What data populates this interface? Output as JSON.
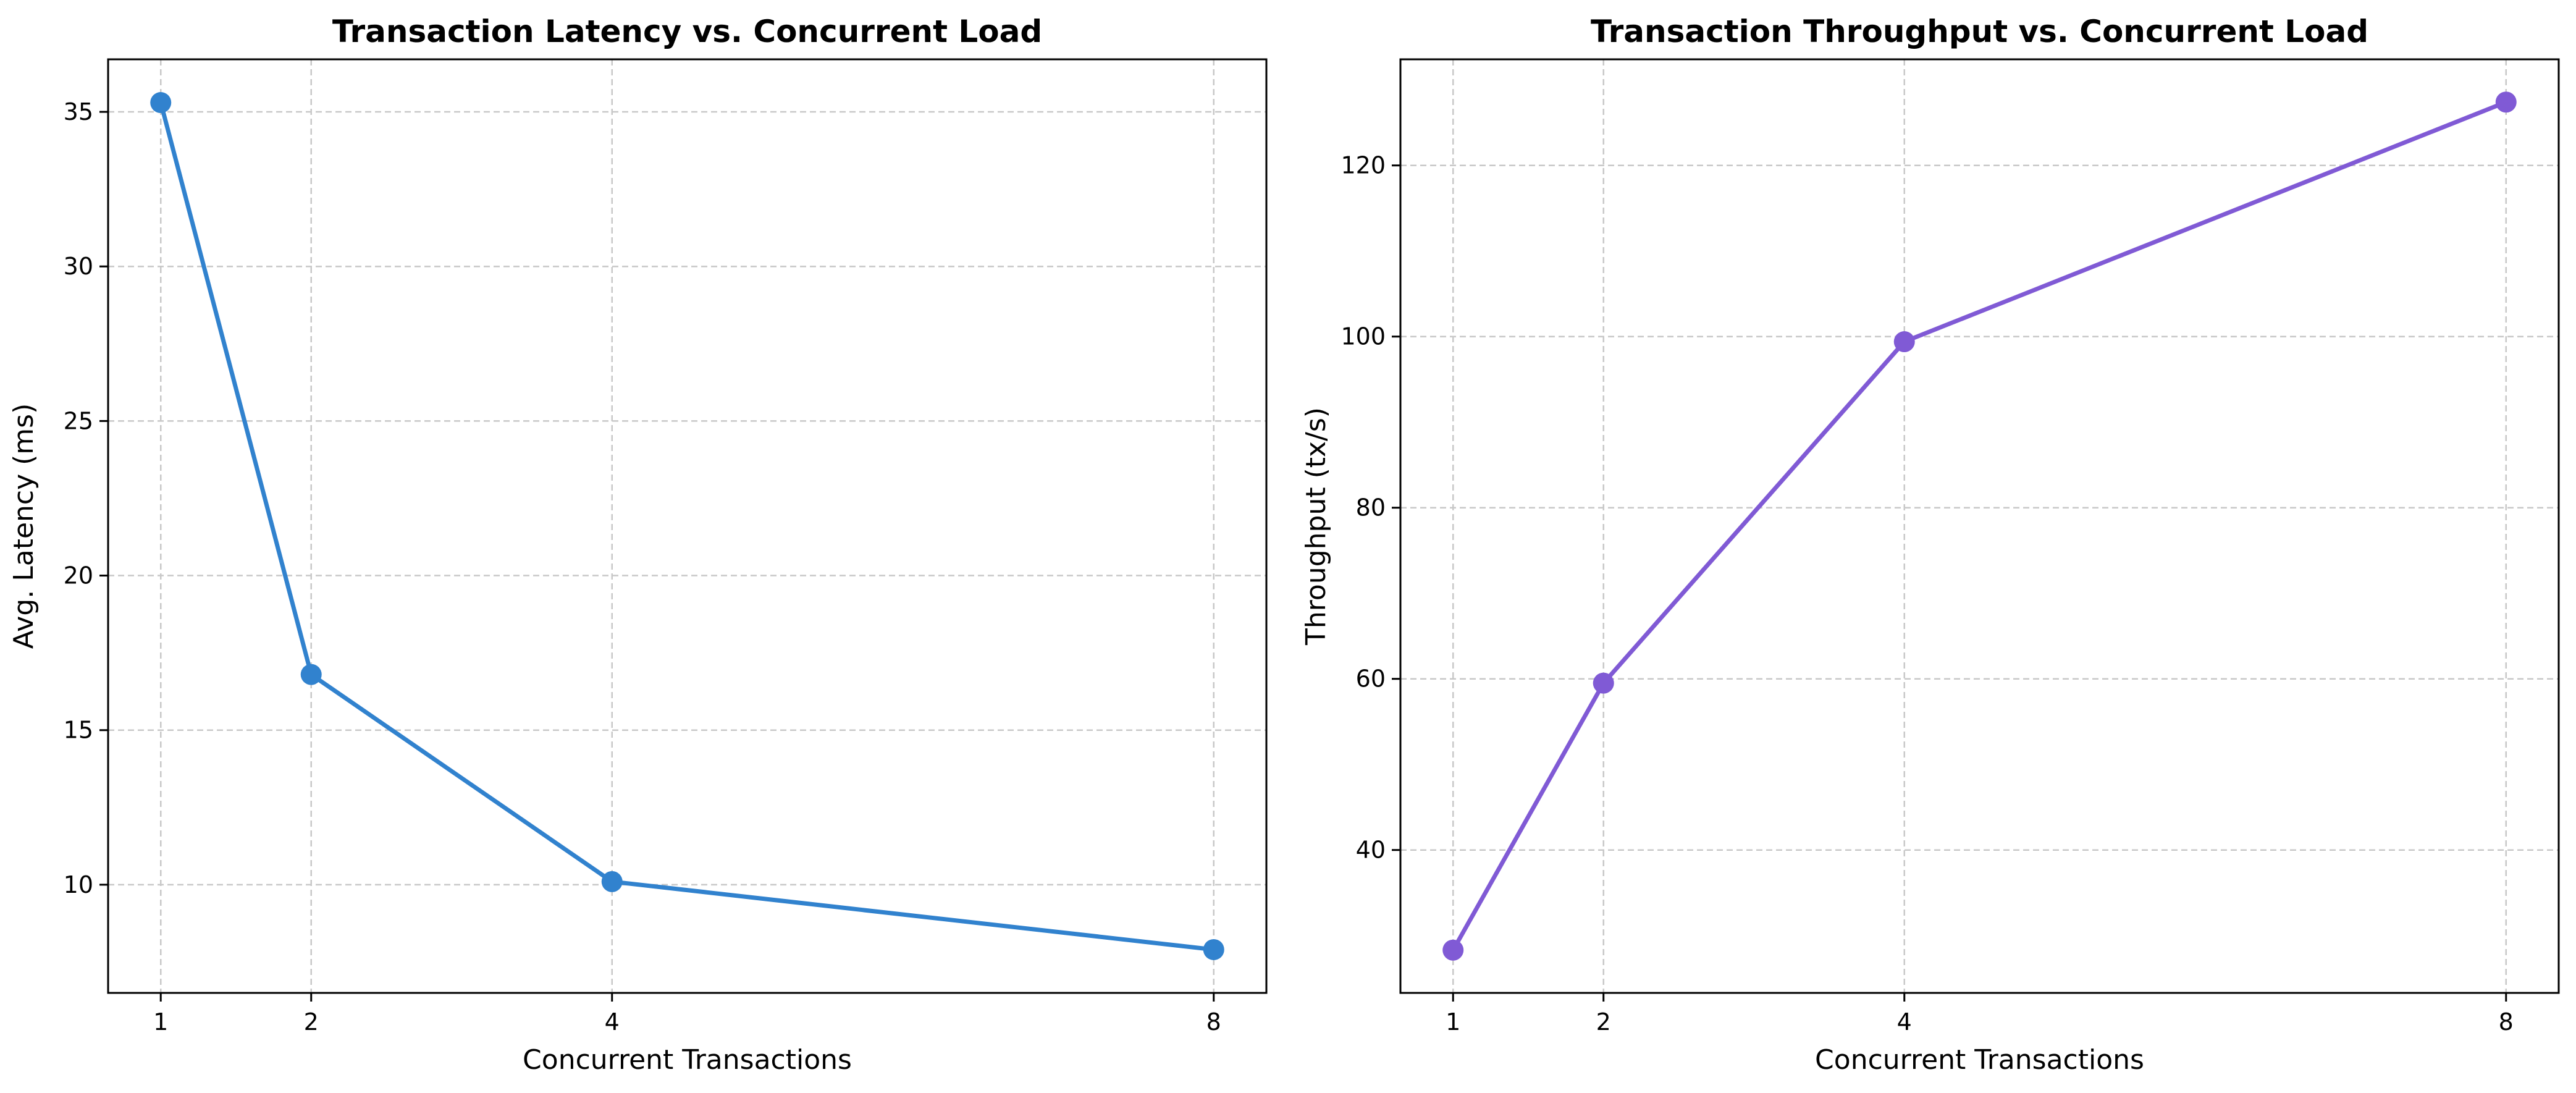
{
  "chart_data": [
    {
      "type": "line",
      "title": "Transaction Latency vs. Concurrent Load",
      "xlabel": "Concurrent Transactions",
      "ylabel": "Avg. Latency (ms)",
      "x": [
        1,
        2,
        4,
        8
      ],
      "x_ticks": [
        "1",
        "2",
        "4",
        "8"
      ],
      "y_ticks": [
        "10",
        "15",
        "20",
        "25",
        "30",
        "35"
      ],
      "xlim": [
        0.65,
        8.35
      ],
      "ylim": [
        6.5,
        36.7
      ],
      "grid": true,
      "color": "#3182ce",
      "series": [
        {
          "values": [
            35.3,
            16.8,
            10.1,
            7.9
          ]
        }
      ]
    },
    {
      "type": "line",
      "title": "Transaction Throughput vs. Concurrent Load",
      "xlabel": "Concurrent Transactions",
      "ylabel": "Throughput (tx/s)",
      "x": [
        1,
        2,
        4,
        8
      ],
      "x_ticks": [
        "1",
        "2",
        "4",
        "8"
      ],
      "y_ticks": [
        "40",
        "60",
        "80",
        "100",
        "120"
      ],
      "xlim": [
        0.65,
        8.35
      ],
      "ylim": [
        23.3,
        132.4
      ],
      "grid": true,
      "color": "#805ad5",
      "series": [
        {
          "values": [
            28.3,
            59.5,
            99.4,
            127.4
          ]
        }
      ]
    }
  ]
}
